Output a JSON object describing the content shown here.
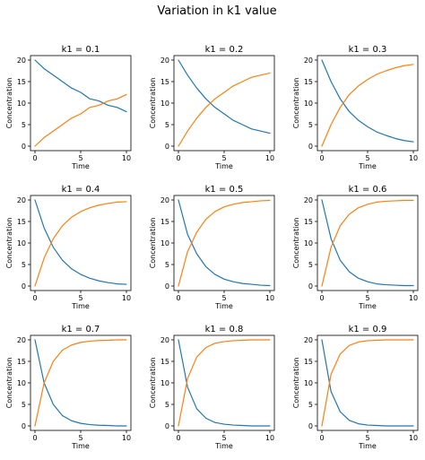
{
  "figure": {
    "suptitle": "Variation in k1 value"
  },
  "colors": {
    "orange": "#ff7f0e",
    "blue": "#1f77b4"
  },
  "chart_data": [
    {
      "type": "line",
      "title": "k1 = 0.1",
      "k1": 0.1,
      "xlabel": "Time",
      "ylabel": "Concentration",
      "xlim": [
        0,
        10
      ],
      "ylim": [
        0,
        20
      ],
      "xticks": [
        "0",
        "5",
        "10"
      ],
      "yticks": [
        "0",
        "5",
        "10",
        "15",
        "20"
      ],
      "series": [
        {
          "color": "#1f77b4",
          "x": [
            0,
            1,
            2,
            3,
            4,
            5,
            6,
            7,
            8,
            9,
            10
          ],
          "values": [
            20,
            18,
            16.5,
            15,
            13.5,
            12.5,
            11,
            10.5,
            9.5,
            9,
            8
          ]
        },
        {
          "color": "#ff7f0e",
          "x": [
            0,
            1,
            2,
            3,
            4,
            5,
            6,
            7,
            8,
            9,
            10
          ],
          "values": [
            0,
            2,
            3.5,
            5,
            6.5,
            7.5,
            9,
            9.5,
            10.5,
            11,
            12
          ]
        }
      ]
    },
    {
      "type": "line",
      "title": "k1 = 0.2",
      "k1": 0.2,
      "xlabel": "Time",
      "ylabel": "Concentration",
      "xlim": [
        0,
        10
      ],
      "ylim": [
        0,
        20
      ],
      "xticks": [
        "0",
        "5",
        "10"
      ],
      "yticks": [
        "0",
        "5",
        "10",
        "15",
        "20"
      ],
      "series": [
        {
          "color": "#1f77b4",
          "x": [
            0,
            1,
            2,
            3,
            4,
            5,
            6,
            7,
            8,
            9,
            10
          ],
          "values": [
            20,
            16.5,
            13.5,
            11,
            9,
            7.5,
            6,
            5,
            4,
            3.5,
            3
          ]
        },
        {
          "color": "#ff7f0e",
          "x": [
            0,
            1,
            2,
            3,
            4,
            5,
            6,
            7,
            8,
            9,
            10
          ],
          "values": [
            0,
            3.5,
            6.5,
            9,
            11,
            12.5,
            14,
            15,
            16,
            16.5,
            17
          ]
        }
      ]
    },
    {
      "type": "line",
      "title": "k1 = 0.3",
      "k1": 0.3,
      "xlabel": "Time",
      "ylabel": "Concentration",
      "xlim": [
        0,
        10
      ],
      "ylim": [
        0,
        20
      ],
      "xticks": [
        "0",
        "5",
        "10"
      ],
      "yticks": [
        "0",
        "5",
        "10",
        "15",
        "20"
      ],
      "series": [
        {
          "color": "#1f77b4",
          "x": [
            0,
            1,
            2,
            3,
            4,
            5,
            6,
            7,
            8,
            9,
            10
          ],
          "values": [
            20,
            15,
            11,
            8,
            6,
            4.5,
            3.3,
            2.5,
            1.8,
            1.3,
            1
          ]
        },
        {
          "color": "#ff7f0e",
          "x": [
            0,
            1,
            2,
            3,
            4,
            5,
            6,
            7,
            8,
            9,
            10
          ],
          "values": [
            0,
            5,
            9,
            12,
            14,
            15.5,
            16.7,
            17.5,
            18.2,
            18.7,
            19
          ]
        }
      ]
    },
    {
      "type": "line",
      "title": "k1 = 0.4",
      "k1": 0.4,
      "xlabel": "Time",
      "ylabel": "Concentration",
      "xlim": [
        0,
        10
      ],
      "ylim": [
        0,
        20
      ],
      "xticks": [
        "0",
        "5",
        "10"
      ],
      "yticks": [
        "0",
        "5",
        "10",
        "15",
        "20"
      ],
      "series": [
        {
          "color": "#1f77b4",
          "x": [
            0,
            1,
            2,
            3,
            4,
            5,
            6,
            7,
            8,
            9,
            10
          ],
          "values": [
            20,
            13.5,
            9,
            6,
            4,
            2.7,
            1.8,
            1.2,
            0.8,
            0.5,
            0.4
          ]
        },
        {
          "color": "#ff7f0e",
          "x": [
            0,
            1,
            2,
            3,
            4,
            5,
            6,
            7,
            8,
            9,
            10
          ],
          "values": [
            0,
            6.5,
            11,
            14,
            16,
            17.3,
            18.2,
            18.8,
            19.2,
            19.5,
            19.6
          ]
        }
      ]
    },
    {
      "type": "line",
      "title": "k1 = 0.5",
      "k1": 0.5,
      "xlabel": "Time",
      "ylabel": "Concentration",
      "xlim": [
        0,
        10
      ],
      "ylim": [
        0,
        20
      ],
      "xticks": [
        "0",
        "5",
        "10"
      ],
      "yticks": [
        "0",
        "5",
        "10",
        "15",
        "20"
      ],
      "series": [
        {
          "color": "#1f77b4",
          "x": [
            0,
            1,
            2,
            3,
            4,
            5,
            6,
            7,
            8,
            9,
            10
          ],
          "values": [
            20,
            12,
            7.5,
            4.5,
            2.7,
            1.6,
            1,
            0.6,
            0.4,
            0.2,
            0.1
          ]
        },
        {
          "color": "#ff7f0e",
          "x": [
            0,
            1,
            2,
            3,
            4,
            5,
            6,
            7,
            8,
            9,
            10
          ],
          "values": [
            0,
            8,
            12.5,
            15.5,
            17.3,
            18.4,
            19,
            19.4,
            19.6,
            19.8,
            19.9
          ]
        }
      ]
    },
    {
      "type": "line",
      "title": "k1 = 0.6",
      "k1": 0.6,
      "xlabel": "Time",
      "ylabel": "Concentration",
      "xlim": [
        0,
        10
      ],
      "ylim": [
        0,
        20
      ],
      "xticks": [
        "0",
        "5",
        "10"
      ],
      "yticks": [
        "0",
        "5",
        "10",
        "15",
        "20"
      ],
      "series": [
        {
          "color": "#1f77b4",
          "x": [
            0,
            1,
            2,
            3,
            4,
            5,
            6,
            7,
            8,
            9,
            10
          ],
          "values": [
            20,
            11,
            6,
            3.3,
            1.8,
            1,
            0.5,
            0.3,
            0.2,
            0.1,
            0.1
          ]
        },
        {
          "color": "#ff7f0e",
          "x": [
            0,
            1,
            2,
            3,
            4,
            5,
            6,
            7,
            8,
            9,
            10
          ],
          "values": [
            0,
            9,
            14,
            16.7,
            18.2,
            19,
            19.5,
            19.7,
            19.8,
            19.9,
            19.9
          ]
        }
      ]
    },
    {
      "type": "line",
      "title": "k1 = 0.7",
      "k1": 0.7,
      "xlabel": "Time",
      "ylabel": "Concentration",
      "xlim": [
        0,
        10
      ],
      "ylim": [
        0,
        20
      ],
      "xticks": [
        "0",
        "5",
        "10"
      ],
      "yticks": [
        "0",
        "5",
        "10",
        "15",
        "20"
      ],
      "series": [
        {
          "color": "#1f77b4",
          "x": [
            0,
            1,
            2,
            3,
            4,
            5,
            6,
            7,
            8,
            9,
            10
          ],
          "values": [
            20,
            10,
            5,
            2.4,
            1.2,
            0.6,
            0.3,
            0.15,
            0.1,
            0,
            0
          ]
        },
        {
          "color": "#ff7f0e",
          "x": [
            0,
            1,
            2,
            3,
            4,
            5,
            6,
            7,
            8,
            9,
            10
          ],
          "values": [
            0,
            10,
            15,
            17.6,
            18.8,
            19.4,
            19.7,
            19.85,
            19.9,
            20,
            20
          ]
        }
      ]
    },
    {
      "type": "line",
      "title": "k1 = 0.8",
      "k1": 0.8,
      "xlabel": "Time",
      "ylabel": "Concentration",
      "xlim": [
        0,
        10
      ],
      "ylim": [
        0,
        20
      ],
      "xticks": [
        "0",
        "5",
        "10"
      ],
      "yticks": [
        "0",
        "5",
        "10",
        "15",
        "20"
      ],
      "series": [
        {
          "color": "#1f77b4",
          "x": [
            0,
            1,
            2,
            3,
            4,
            5,
            6,
            7,
            8,
            9,
            10
          ],
          "values": [
            20,
            9,
            4,
            1.8,
            0.8,
            0.4,
            0.2,
            0.1,
            0,
            0,
            0
          ]
        },
        {
          "color": "#ff7f0e",
          "x": [
            0,
            1,
            2,
            3,
            4,
            5,
            6,
            7,
            8,
            9,
            10
          ],
          "values": [
            0,
            11,
            16,
            18.2,
            19.2,
            19.6,
            19.8,
            19.9,
            20,
            20,
            20
          ]
        }
      ]
    },
    {
      "type": "line",
      "title": "k1 = 0.9",
      "k1": 0.9,
      "xlabel": "Time",
      "ylabel": "Concentration",
      "xlim": [
        0,
        10
      ],
      "ylim": [
        0,
        20
      ],
      "xticks": [
        "0",
        "5",
        "10"
      ],
      "yticks": [
        "0",
        "5",
        "10",
        "15",
        "20"
      ],
      "series": [
        {
          "color": "#1f77b4",
          "x": [
            0,
            1,
            2,
            3,
            4,
            5,
            6,
            7,
            8,
            9,
            10
          ],
          "values": [
            20,
            8,
            3.3,
            1.3,
            0.5,
            0.2,
            0.1,
            0,
            0,
            0,
            0
          ]
        },
        {
          "color": "#ff7f0e",
          "x": [
            0,
            1,
            2,
            3,
            4,
            5,
            6,
            7,
            8,
            9,
            10
          ],
          "values": [
            0,
            12,
            16.7,
            18.7,
            19.5,
            19.8,
            19.9,
            20,
            20,
            20,
            20
          ]
        }
      ]
    }
  ]
}
